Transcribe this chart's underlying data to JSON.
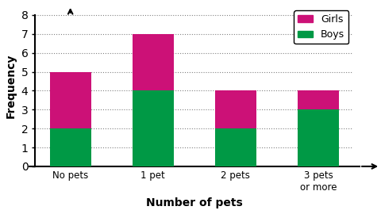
{
  "categories": [
    "No pets",
    "1 pet",
    "2 pets",
    "3 pets\nor more"
  ],
  "boys_values": [
    2,
    4,
    2,
    3
  ],
  "girls_values": [
    3,
    3,
    2,
    1
  ],
  "boys_color": "#009945",
  "girls_color": "#cc1177",
  "xlabel": "Number of pets",
  "ylabel": "Frequency",
  "ylim": [
    0,
    8.5
  ],
  "yticks": [
    0,
    1,
    2,
    3,
    4,
    5,
    6,
    7,
    8
  ],
  "legend_girls": "Girls",
  "legend_boys": "Boys",
  "bar_width": 0.5,
  "figsize": [
    4.8,
    2.7
  ],
  "dpi": 100
}
